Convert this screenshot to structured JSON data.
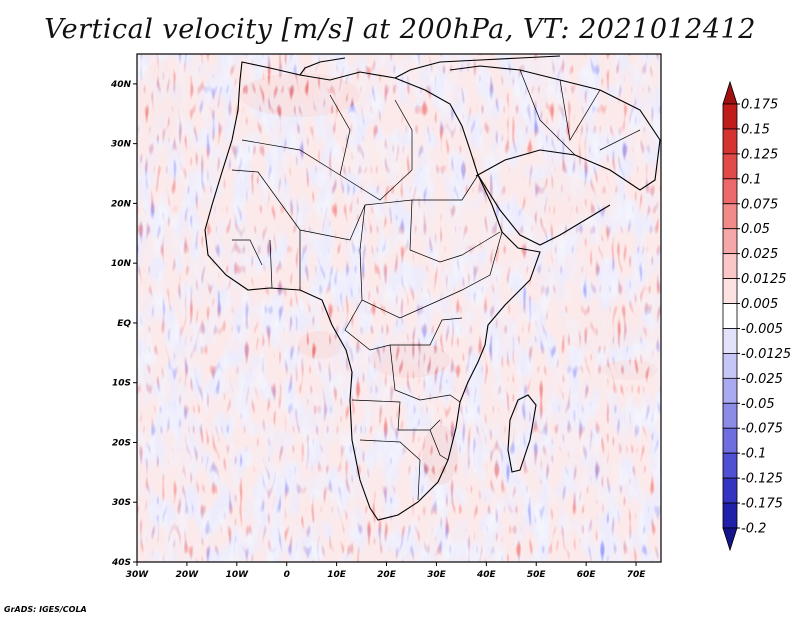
{
  "title": "Vertical velocity [m/s] at 200hPa, VT: 2021012412",
  "credit": "GrADS: IGES/COLA",
  "map": {
    "lon_range": [
      -30,
      75
    ],
    "lat_range": [
      -40,
      45
    ],
    "lon_ticks": [
      {
        "value": -30,
        "label": "30W"
      },
      {
        "value": -20,
        "label": "20W"
      },
      {
        "value": -10,
        "label": "10W"
      },
      {
        "value": 0,
        "label": "0"
      },
      {
        "value": 10,
        "label": "10E"
      },
      {
        "value": 20,
        "label": "20E"
      },
      {
        "value": 30,
        "label": "30E"
      },
      {
        "value": 40,
        "label": "40E"
      },
      {
        "value": 50,
        "label": "50E"
      },
      {
        "value": 60,
        "label": "60E"
      },
      {
        "value": 70,
        "label": "70E"
      }
    ],
    "lat_ticks": [
      {
        "value": 40,
        "label": "40N"
      },
      {
        "value": 30,
        "label": "30N"
      },
      {
        "value": 20,
        "label": "20N"
      },
      {
        "value": 10,
        "label": "10N"
      },
      {
        "value": 0,
        "label": "EQ"
      },
      {
        "value": -10,
        "label": "10S"
      },
      {
        "value": -20,
        "label": "20S"
      },
      {
        "value": -30,
        "label": "30S"
      },
      {
        "value": -40,
        "label": "40S"
      }
    ]
  },
  "colorbar": {
    "labels": [
      "0.175",
      "0.15",
      "0.125",
      "0.1",
      "0.075",
      "0.05",
      "0.025",
      "0.0125",
      "0.005",
      "-0.005",
      "-0.0125",
      "-0.025",
      "-0.05",
      "-0.075",
      "-0.1",
      "-0.125",
      "-0.175",
      "-0.2"
    ],
    "colors": [
      "#a01010",
      "#c01c1c",
      "#d63232",
      "#e24a4a",
      "#ec6a6a",
      "#f28a8a",
      "#f6a8a8",
      "#fac6c6",
      "#fde2e2",
      "#ffffff",
      "#e2e2fb",
      "#c6c6f6",
      "#aaaaf0",
      "#8c8ce8",
      "#6e6ee0",
      "#5050d4",
      "#3434c2",
      "#2020a8",
      "#14148c"
    ]
  },
  "colors": {
    "red": "#d94040",
    "blue": "#5a5ae0",
    "white": "#ffffff"
  }
}
